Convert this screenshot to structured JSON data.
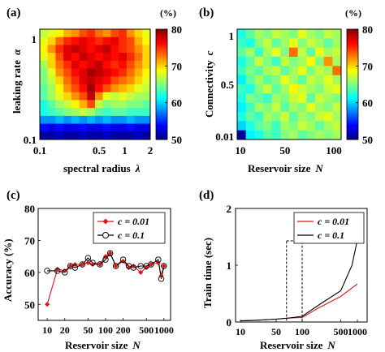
{
  "chart_data": [
    {
      "panel": "(a)",
      "type": "heatmap",
      "xlabel": "spectral radius",
      "xlabel_symbol": "λ",
      "ylabel": "leaking rate",
      "ylabel_symbol": "α",
      "x_scale": "log",
      "y_scale": "log",
      "x_ticks": [
        {
          "v": 0.1,
          "label": "0.1"
        },
        {
          "v": 0.5,
          "label": "0.5"
        },
        {
          "v": 1,
          "label": "1"
        },
        {
          "v": 2,
          "label": "2"
        }
      ],
      "y_ticks": [
        {
          "v": 0.1,
          "label": "0.1"
        },
        {
          "v": 1,
          "label": "1"
        }
      ],
      "colorbar": {
        "unit": "(%)",
        "min": 50,
        "max": 80,
        "ticks": [
          50,
          60,
          70,
          80
        ]
      },
      "values": [
        [
          67,
          68,
          69,
          71,
          72,
          74,
          75,
          73,
          72,
          74,
          75,
          72,
          70,
          68
        ],
        [
          68,
          70,
          73,
          75,
          76,
          77,
          76,
          75,
          76,
          77,
          75,
          74,
          71,
          69
        ],
        [
          69,
          72,
          75,
          77,
          78,
          77,
          76,
          77,
          78,
          76,
          75,
          74,
          72,
          70
        ],
        [
          68,
          70,
          74,
          77,
          76,
          78,
          77,
          76,
          77,
          76,
          77,
          75,
          73,
          70
        ],
        [
          66,
          70,
          73,
          75,
          77,
          76,
          77,
          78,
          76,
          75,
          76,
          74,
          72,
          70
        ],
        [
          65,
          68,
          72,
          74,
          76,
          77,
          79,
          78,
          77,
          76,
          75,
          73,
          71,
          69
        ],
        [
          65,
          67,
          70,
          73,
          75,
          77,
          78,
          77,
          76,
          74,
          73,
          72,
          70,
          68
        ],
        [
          64,
          66,
          69,
          72,
          74,
          76,
          79,
          76,
          74,
          72,
          71,
          70,
          68,
          67
        ],
        [
          64,
          66,
          68,
          70,
          72,
          74,
          78,
          72,
          68,
          67,
          68,
          67,
          66,
          66
        ],
        [
          62,
          64,
          66,
          67,
          69,
          71,
          74,
          67,
          65,
          66,
          66,
          65,
          65,
          64
        ],
        [
          62,
          63,
          64,
          65,
          66,
          67,
          66,
          64,
          63,
          64,
          64,
          63,
          63,
          63
        ],
        [
          58,
          58,
          59,
          58,
          59,
          58,
          59,
          58,
          59,
          58,
          58,
          59,
          58,
          58
        ],
        [
          54,
          53,
          54,
          53,
          53,
          54,
          53,
          53,
          54,
          53,
          53,
          54,
          53,
          53
        ],
        [
          51,
          51,
          52,
          51,
          51,
          52,
          51,
          51,
          52,
          51,
          51,
          51,
          52,
          51
        ]
      ]
    },
    {
      "panel": "(b)",
      "type": "heatmap",
      "xlabel": "Reservoir size",
      "xlabel_symbol": "N",
      "ylabel": "Connectivity",
      "ylabel_symbol": "c",
      "x_ticks": [
        {
          "v": 10,
          "label": "10"
        },
        {
          "v": 50,
          "label": "50"
        },
        {
          "v": 100,
          "label": "100"
        }
      ],
      "y_ticks": [
        {
          "v": 0.01,
          "label": "0.01"
        },
        {
          "v": 0.5,
          "label": "0.5"
        },
        {
          "v": 1,
          "label": "1"
        }
      ],
      "colorbar": {
        "unit": "(%)",
        "min": 50,
        "max": 80,
        "ticks": [
          50,
          60,
          70,
          80
        ]
      },
      "values": [
        [
          62,
          64,
          66,
          65,
          67,
          66,
          65,
          68,
          66,
          65,
          67,
          66
        ],
        [
          63,
          62,
          65,
          67,
          64,
          66,
          68,
          65,
          67,
          66,
          64,
          66
        ],
        [
          64,
          66,
          63,
          66,
          68,
          65,
          73,
          67,
          64,
          68,
          66,
          67
        ],
        [
          62,
          64,
          67,
          65,
          63,
          67,
          65,
          66,
          69,
          65,
          72,
          66
        ],
        [
          63,
          65,
          64,
          66,
          67,
          64,
          66,
          68,
          65,
          67,
          66,
          73
        ],
        [
          61,
          64,
          66,
          64,
          65,
          68,
          66,
          64,
          67,
          66,
          68,
          66
        ],
        [
          63,
          62,
          65,
          67,
          64,
          66,
          69,
          67,
          66,
          65,
          67,
          68
        ],
        [
          62,
          65,
          64,
          63,
          66,
          65,
          67,
          68,
          64,
          67,
          66,
          65
        ],
        [
          61,
          63,
          66,
          65,
          67,
          64,
          66,
          65,
          68,
          66,
          65,
          67
        ],
        [
          62,
          64,
          63,
          66,
          65,
          67,
          64,
          66,
          65,
          67,
          68,
          66
        ],
        [
          60,
          62,
          64,
          65,
          63,
          66,
          65,
          67,
          66,
          64,
          66,
          67
        ],
        [
          51,
          61,
          62,
          64,
          63,
          65,
          66,
          64,
          65,
          66,
          65,
          66
        ]
      ]
    },
    {
      "panel": "(c)",
      "type": "line",
      "xlabel": "Reservoir size",
      "xlabel_symbol": "N",
      "ylabel": "Accuracy (%)",
      "x_scale": "log",
      "xlim": [
        7,
        1300
      ],
      "ylim": [
        45,
        80
      ],
      "x_ticks": [
        {
          "v": 10,
          "label": "10"
        },
        {
          "v": 20,
          "label": "20"
        },
        {
          "v": 50,
          "label": "50"
        },
        {
          "v": 100,
          "label": "100"
        },
        {
          "v": 200,
          "label": "200"
        },
        {
          "v": 500,
          "label": "500"
        },
        {
          "v": 1000,
          "label": "1000"
        }
      ],
      "y_ticks": [
        50,
        60,
        70,
        80
      ],
      "x": [
        10,
        15,
        20,
        25,
        30,
        40,
        50,
        60,
        80,
        100,
        120,
        150,
        200,
        250,
        300,
        400,
        500,
        600,
        800,
        900,
        1000
      ],
      "series": [
        {
          "name": "c = 0.01",
          "color": "#e0141c",
          "marker": "filled-diamond",
          "values": [
            50,
            61,
            60.5,
            62,
            62.5,
            62.5,
            63,
            62.5,
            62.5,
            65,
            66,
            62,
            63.5,
            61.5,
            62,
            60,
            61.5,
            62.5,
            63,
            59,
            62
          ]
        },
        {
          "name": "c = 0.1",
          "color": "#000000",
          "marker": "open-circle",
          "values": [
            60.5,
            60.5,
            60,
            62,
            61.5,
            62.5,
            64.5,
            63,
            62.5,
            64,
            66,
            62,
            64,
            62,
            61.5,
            62,
            62,
            62.5,
            64,
            58,
            62
          ]
        }
      ]
    },
    {
      "panel": "(d)",
      "type": "line",
      "xlabel": "Reservoir size",
      "xlabel_symbol": "N",
      "ylabel": "Train time (sec)",
      "x_scale": "broken-log",
      "ylim": [
        0,
        2
      ],
      "x_ticks": [
        {
          "v": 10,
          "label": "10"
        },
        {
          "v": 50,
          "label": "50"
        },
        {
          "v": 100,
          "label": "100"
        },
        {
          "v": 500,
          "label": "500"
        },
        {
          "v": 1000,
          "label": "1000"
        }
      ],
      "y_ticks": [
        0,
        1,
        2
      ],
      "dashed_inset": {
        "x_from": 80,
        "x_to": 100
      },
      "series": [
        {
          "name": "c = 0.01",
          "color": "#e0141c",
          "x": [
            10,
            20,
            50,
            90,
            100,
            200,
            500,
            1000
          ],
          "values": [
            0.02,
            0.03,
            0.05,
            0.07,
            0.08,
            0.25,
            0.45,
            0.67
          ]
        },
        {
          "name": "c = 0.1",
          "color": "#000000",
          "x": [
            10,
            20,
            50,
            90,
            100,
            200,
            500,
            800,
            1000
          ],
          "values": [
            0.02,
            0.03,
            0.05,
            0.07,
            0.1,
            0.3,
            0.55,
            1.0,
            1.45
          ]
        }
      ]
    }
  ]
}
